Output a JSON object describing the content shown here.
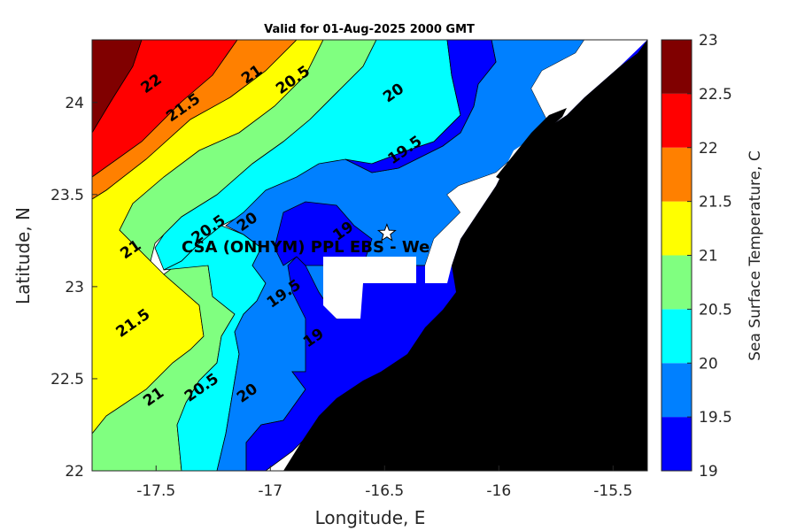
{
  "chart_data": {
    "type": "heatmap",
    "title": "Valid for 01-Aug-2025 2000 GMT",
    "xlabel": "Longitude, E",
    "ylabel": "Latitude, N",
    "xlim": [
      -17.78,
      -15.35
    ],
    "ylim": [
      22.0,
      24.34
    ],
    "x_ticks": [
      "-17.5",
      "-17",
      "-16.5",
      "-16",
      "-15.5"
    ],
    "x_tick_values": [
      -17.5,
      -17.0,
      -16.5,
      -16.0,
      -15.5
    ],
    "y_ticks": [
      "22",
      "22.5",
      "23",
      "23.5",
      "24"
    ],
    "y_tick_values": [
      22.0,
      22.5,
      23.0,
      23.5,
      24.0
    ],
    "colorbar": {
      "label": "Sea Surface Temperature, C",
      "ticks": [
        "19",
        "19.5",
        "20",
        "20.5",
        "21",
        "21.5",
        "22",
        "22.5",
        "23"
      ],
      "levels": [
        19,
        19.5,
        20,
        20.5,
        21,
        21.5,
        22,
        22.5,
        23
      ],
      "colors": [
        "#0000ff",
        "#0080ff",
        "#00ffff",
        "#80ff80",
        "#ffff00",
        "#ff8000",
        "#ff0000",
        "#800000"
      ]
    },
    "contour_labels": [
      {
        "text": "22",
        "lon": -17.52,
        "lat": 24.1
      },
      {
        "text": "21.5",
        "lon": -17.38,
        "lat": 23.97
      },
      {
        "text": "21",
        "lon": -17.08,
        "lat": 24.15
      },
      {
        "text": "20.5",
        "lon": -16.9,
        "lat": 24.12
      },
      {
        "text": "20",
        "lon": -16.46,
        "lat": 24.05
      },
      {
        "text": "19.5",
        "lon": -16.41,
        "lat": 23.74
      },
      {
        "text": "19",
        "lon": -16.68,
        "lat": 23.3
      },
      {
        "text": "20.5",
        "lon": -17.27,
        "lat": 23.31
      },
      {
        "text": "20",
        "lon": -17.1,
        "lat": 23.35
      },
      {
        "text": "21",
        "lon": -17.61,
        "lat": 23.2
      },
      {
        "text": "21.5",
        "lon": -17.6,
        "lat": 22.8
      },
      {
        "text": "19.5",
        "lon": -16.94,
        "lat": 22.96
      },
      {
        "text": "19",
        "lon": -16.81,
        "lat": 22.72
      },
      {
        "text": "21",
        "lon": -17.51,
        "lat": 22.4
      },
      {
        "text": "20.5",
        "lon": -17.3,
        "lat": 22.45
      },
      {
        "text": "20",
        "lon": -17.1,
        "lat": 22.42
      }
    ],
    "site": {
      "label": "CSA (ONHYM) PPL EBS  - We",
      "lon": -16.49,
      "lat": 23.29
    }
  }
}
